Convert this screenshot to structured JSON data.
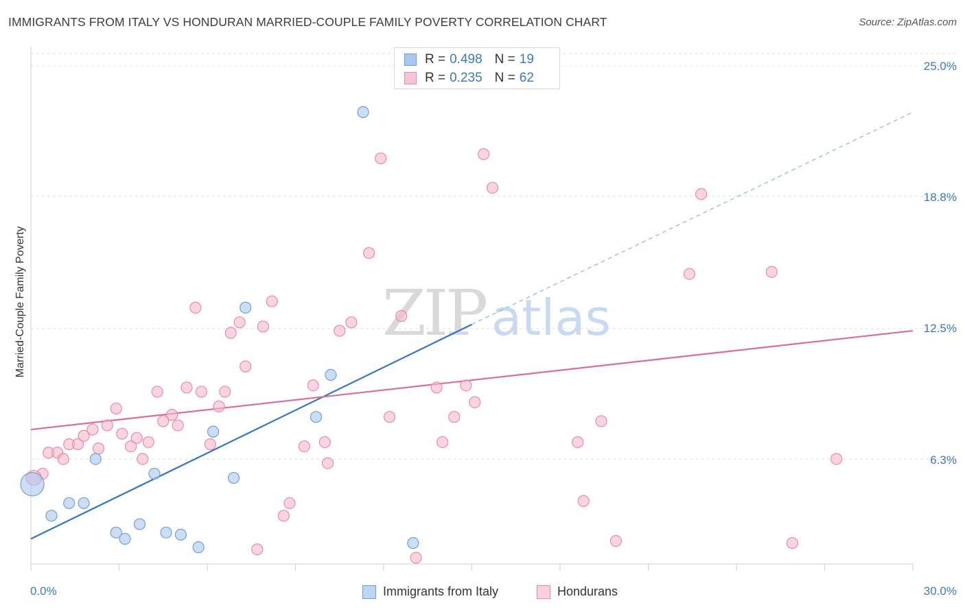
{
  "header": {
    "title": "IMMIGRANTS FROM ITALY VS HONDURAN MARRIED-COUPLE FAMILY POVERTY CORRELATION CHART",
    "source": "Source: ZipAtlas.com"
  },
  "watermark": {
    "zip": "ZIP",
    "atlas": "atlas"
  },
  "legend": {
    "series1": {
      "r_label": "R =",
      "r_value": "0.498",
      "n_label": "N =",
      "n_value": "19"
    },
    "series2": {
      "r_label": "R =",
      "r_value": "0.235",
      "n_label": "N =",
      "n_value": "62"
    }
  },
  "colors": {
    "italy_fill": "#a9c8f0",
    "italy_stroke": "#6e9fd8",
    "italy_line": "#2f74d0",
    "honduras_fill": "#f6b9cb",
    "honduras_stroke": "#e98aa7",
    "honduras_line": "#e06b93",
    "axis_text": "#3a78c9",
    "grid": "#dcdcdc"
  },
  "chart_data": {
    "type": "scatter",
    "title": "IMMIGRANTS FROM ITALY VS HONDURAN MARRIED-COUPLE FAMILY POVERTY CORRELATION CHART",
    "xlabel": "",
    "ylabel": "Married-Couple Family Poverty",
    "xlim": [
      0,
      30
    ],
    "ylim": [
      0,
      26
    ],
    "x_tick_labels": [
      "0.0%",
      "30.0%"
    ],
    "y_ticks": [
      6.3,
      12.5,
      18.8,
      25.0
    ],
    "y_tick_labels": [
      "6.3%",
      "12.5%",
      "18.8%",
      "25.0%"
    ],
    "grid": true,
    "legend_position": "bottom-center",
    "series": [
      {
        "name": "Immigrants from Italy",
        "points": [
          [
            0.05,
            5.1
          ],
          [
            0.7,
            3.6
          ],
          [
            1.3,
            4.2
          ],
          [
            1.8,
            4.2
          ],
          [
            2.2,
            6.3
          ],
          [
            2.9,
            2.8
          ],
          [
            3.2,
            2.5
          ],
          [
            3.7,
            3.2
          ],
          [
            4.2,
            5.6
          ],
          [
            4.6,
            2.8
          ],
          [
            5.1,
            2.7
          ],
          [
            5.7,
            2.1
          ],
          [
            6.2,
            7.6
          ],
          [
            6.9,
            5.4
          ],
          [
            7.3,
            13.5
          ],
          [
            9.7,
            8.3
          ],
          [
            10.2,
            10.3
          ],
          [
            11.3,
            22.8
          ],
          [
            13.0,
            2.3
          ]
        ],
        "trend": {
          "x_start": 0,
          "y_start": 2.5,
          "x_end": 15.0,
          "y_end": 12.7,
          "dashed_to_x": 30,
          "dashed_to_y": 22.8
        }
      },
      {
        "name": "Hondurans",
        "points": [
          [
            0.4,
            5.6
          ],
          [
            0.6,
            6.6
          ],
          [
            0.9,
            6.6
          ],
          [
            1.1,
            6.3
          ],
          [
            1.3,
            7.0
          ],
          [
            1.6,
            7.0
          ],
          [
            1.8,
            7.4
          ],
          [
            2.1,
            7.7
          ],
          [
            2.3,
            6.8
          ],
          [
            2.6,
            7.9
          ],
          [
            2.9,
            8.7
          ],
          [
            3.1,
            7.5
          ],
          [
            3.4,
            6.9
          ],
          [
            3.6,
            7.3
          ],
          [
            3.8,
            6.3
          ],
          [
            4.0,
            7.1
          ],
          [
            4.3,
            9.5
          ],
          [
            4.5,
            8.1
          ],
          [
            4.8,
            8.4
          ],
          [
            5.0,
            7.9
          ],
          [
            5.3,
            9.7
          ],
          [
            5.6,
            13.5
          ],
          [
            5.8,
            9.5
          ],
          [
            6.1,
            7.0
          ],
          [
            6.4,
            8.8
          ],
          [
            6.6,
            9.5
          ],
          [
            6.8,
            12.3
          ],
          [
            7.1,
            12.8
          ],
          [
            7.3,
            10.7
          ],
          [
            7.7,
            2.0
          ],
          [
            7.9,
            12.6
          ],
          [
            8.2,
            13.8
          ],
          [
            8.6,
            3.6
          ],
          [
            8.8,
            4.2
          ],
          [
            9.3,
            6.9
          ],
          [
            9.6,
            9.8
          ],
          [
            10.0,
            7.1
          ],
          [
            10.1,
            6.1
          ],
          [
            10.5,
            12.4
          ],
          [
            10.9,
            12.8
          ],
          [
            11.5,
            16.1
          ],
          [
            11.9,
            20.6
          ],
          [
            12.2,
            8.3
          ],
          [
            12.6,
            13.1
          ],
          [
            13.1,
            1.6
          ],
          [
            13.8,
            9.7
          ],
          [
            14.0,
            7.1
          ],
          [
            14.4,
            8.3
          ],
          [
            14.8,
            9.8
          ],
          [
            15.1,
            9.0
          ],
          [
            15.4,
            20.8
          ],
          [
            15.7,
            19.2
          ],
          [
            18.6,
            7.1
          ],
          [
            18.8,
            4.3
          ],
          [
            19.4,
            8.1
          ],
          [
            19.9,
            2.4
          ],
          [
            22.4,
            15.1
          ],
          [
            22.8,
            18.9
          ],
          [
            25.2,
            15.2
          ],
          [
            25.9,
            2.3
          ],
          [
            27.4,
            6.3
          ],
          [
            0.1,
            5.4
          ]
        ],
        "trend": {
          "x_start": 0,
          "y_start": 7.7,
          "x_end": 30,
          "y_end": 12.4
        }
      }
    ]
  }
}
